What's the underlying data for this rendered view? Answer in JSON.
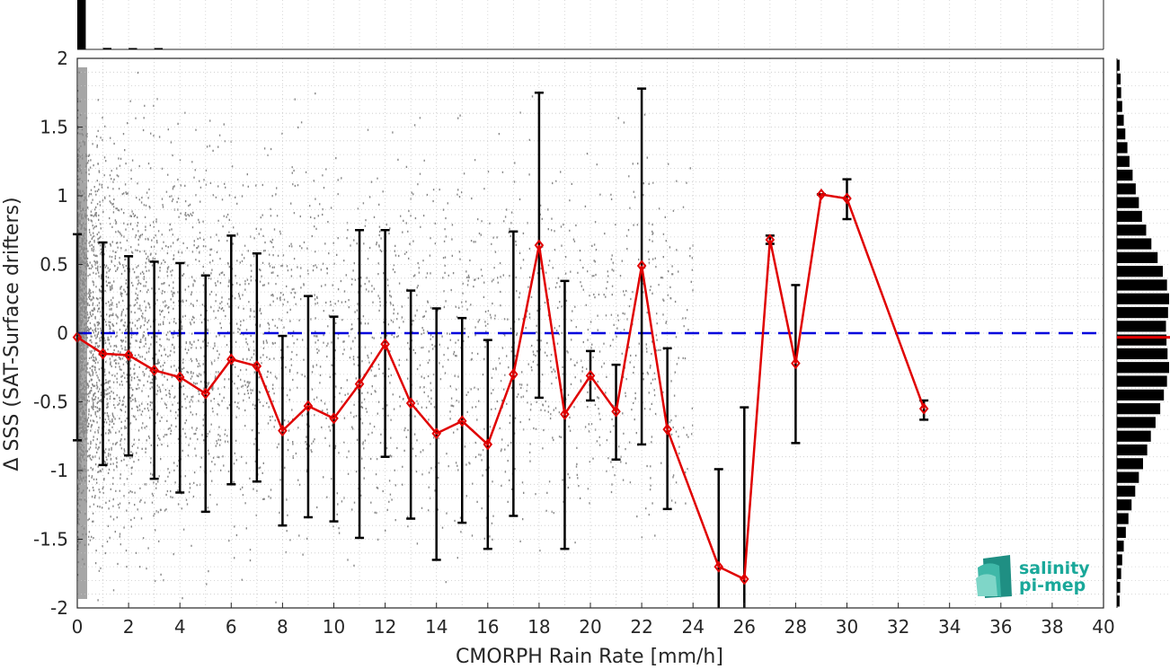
{
  "chart_data": {
    "type": "scatter",
    "xlabel": "CMORPH Rain Rate [mm/h]",
    "ylabel": "Δ SSS (SAT-Surface drifters)",
    "xlim": [
      0,
      40
    ],
    "ylim": [
      -2,
      2
    ],
    "x_ticks": [
      "0",
      "2",
      "4",
      "6",
      "8",
      "10",
      "12",
      "14",
      "16",
      "18",
      "20",
      "22",
      "24",
      "26",
      "28",
      "30",
      "32",
      "34",
      "36",
      "38",
      "40"
    ],
    "y_ticks": [
      "2",
      "1.5",
      "1",
      "0.5",
      "0",
      "-0.5",
      "-1",
      "-1.5",
      "-2"
    ],
    "grid": "dotted",
    "reference_line": {
      "y": 0,
      "color": "#0000dd",
      "style": "dashed"
    },
    "mean_series": {
      "color": "#e00000",
      "x": [
        0,
        1,
        2,
        3,
        4,
        5,
        6,
        7,
        8,
        9,
        10,
        11,
        12,
        13,
        14,
        15,
        16,
        17,
        18,
        19,
        20,
        21,
        22,
        23,
        25,
        26,
        27,
        28,
        29,
        30,
        33
      ],
      "y": [
        -0.03,
        -0.15,
        -0.16,
        -0.27,
        -0.32,
        -0.44,
        -0.19,
        -0.24,
        -0.71,
        -0.53,
        -0.62,
        -0.37,
        -0.08,
        -0.51,
        -0.73,
        -0.64,
        -0.81,
        -0.3,
        0.64,
        -0.59,
        -0.31,
        -0.57,
        0.49,
        -0.7,
        -1.7,
        -1.79,
        0.68,
        -0.22,
        1.01,
        0.98,
        -0.55
      ],
      "err_low": [
        -0.78,
        -0.96,
        -0.89,
        -1.06,
        -1.16,
        -1.3,
        -1.1,
        -1.08,
        -1.4,
        -1.34,
        -1.37,
        -1.49,
        -0.9,
        -1.35,
        -1.65,
        -1.38,
        -1.57,
        -1.33,
        -0.47,
        -1.57,
        -0.49,
        -0.92,
        -0.81,
        -1.28,
        -2.0,
        -2.0,
        0.65,
        -0.8,
        1.01,
        0.83,
        -0.63
      ],
      "err_high": [
        0.72,
        0.66,
        0.56,
        0.52,
        0.51,
        0.42,
        0.71,
        0.58,
        -0.02,
        0.27,
        0.12,
        0.75,
        0.75,
        0.31,
        0.18,
        0.11,
        -0.05,
        0.74,
        1.75,
        0.38,
        -0.13,
        -0.23,
        1.78,
        -0.11,
        -0.99,
        -0.54,
        0.71,
        0.35,
        1.01,
        1.12,
        -0.49
      ]
    },
    "top_histogram": {
      "bins_x": [
        0,
        1,
        2,
        3
      ],
      "relative_counts": [
        1.0,
        0.03,
        0.02,
        0.01
      ]
    },
    "right_histogram": {
      "bins_y": [
        1.95,
        1.85,
        1.75,
        1.65,
        1.55,
        1.45,
        1.35,
        1.25,
        1.15,
        1.05,
        0.95,
        0.85,
        0.75,
        0.65,
        0.55,
        0.45,
        0.35,
        0.25,
        0.15,
        0.05,
        -0.05,
        -0.15,
        -0.25,
        -0.35,
        -0.45,
        -0.55,
        -0.65,
        -0.75,
        -0.85,
        -0.95,
        -1.05,
        -1.15,
        -1.25,
        -1.35,
        -1.45,
        -1.55,
        -1.65,
        -1.75,
        -1.85,
        -1.95
      ],
      "relative_counts": [
        0.05,
        0.07,
        0.08,
        0.1,
        0.13,
        0.16,
        0.2,
        0.24,
        0.3,
        0.36,
        0.42,
        0.48,
        0.56,
        0.66,
        0.78,
        0.88,
        0.96,
        1.0,
        0.98,
        0.94,
        0.95,
        0.97,
        1.0,
        0.96,
        0.9,
        0.83,
        0.74,
        0.65,
        0.58,
        0.5,
        0.42,
        0.35,
        0.28,
        0.22,
        0.17,
        0.13,
        0.1,
        0.08,
        0.06,
        0.05
      ],
      "mean_line": {
        "y": -0.03,
        "color": "#e00000"
      }
    },
    "scatter_color": "#888888"
  },
  "logo": {
    "line1": "salinity",
    "line2": "pi-mep",
    "color": "#1aa89a"
  }
}
